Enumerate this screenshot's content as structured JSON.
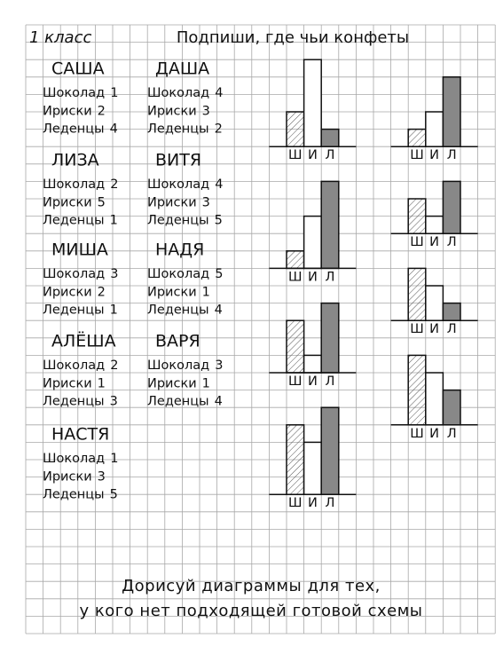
{
  "header": {
    "grade": "1 класс",
    "title": "Подпиши, где чьи конфеты"
  },
  "people": [
    {
      "name": "САША",
      "items": [
        {
          "label": "Шоколад",
          "value": 1
        },
        {
          "label": "Ириски",
          "value": 2
        },
        {
          "label": "Леденцы",
          "value": 4
        }
      ]
    },
    {
      "name": "ДАША",
      "items": [
        {
          "label": "Шоколад",
          "value": 4
        },
        {
          "label": "Ириски",
          "value": 3
        },
        {
          "label": "Леденцы",
          "value": 2
        }
      ]
    },
    {
      "name": "ЛИЗА",
      "items": [
        {
          "label": "Шоколад",
          "value": 2
        },
        {
          "label": "Ириски",
          "value": 5
        },
        {
          "label": "Леденцы",
          "value": 1
        }
      ]
    },
    {
      "name": "ВИТЯ",
      "items": [
        {
          "label": "Шоколад",
          "value": 4
        },
        {
          "label": "Ириски",
          "value": 3
        },
        {
          "label": "Леденцы",
          "value": 5
        }
      ]
    },
    {
      "name": "МИША",
      "items": [
        {
          "label": "Шоколад",
          "value": 3
        },
        {
          "label": "Ириски",
          "value": 2
        },
        {
          "label": "Леденцы",
          "value": 1
        }
      ]
    },
    {
      "name": "НАДЯ",
      "items": [
        {
          "label": "Шоколад",
          "value": 5
        },
        {
          "label": "Ириски",
          "value": 1
        },
        {
          "label": "Леденцы",
          "value": 4
        }
      ]
    },
    {
      "name": "АЛЁША",
      "items": [
        {
          "label": "Шоколад",
          "value": 2
        },
        {
          "label": "Ириски",
          "value": 1
        },
        {
          "label": "Леденцы",
          "value": 3
        }
      ]
    },
    {
      "name": "ВАРЯ",
      "items": [
        {
          "label": "Шоколад",
          "value": 3
        },
        {
          "label": "Ириски",
          "value": 1
        },
        {
          "label": "Леденцы",
          "value": 4
        }
      ]
    },
    {
      "name": "НАСТЯ",
      "items": [
        {
          "label": "Шоколад",
          "value": 1
        },
        {
          "label": "Ириски",
          "value": 3
        },
        {
          "label": "Леденцы",
          "value": 5
        }
      ]
    }
  ],
  "diagrams": [
    {
      "labels": [
        "Ш",
        "И",
        "Л"
      ],
      "values": [
        2,
        5,
        1
      ]
    },
    {
      "labels": [
        "Ш",
        "И",
        "Л"
      ],
      "values": [
        1,
        2,
        4
      ]
    },
    {
      "labels": [
        "Ш",
        "И",
        "Л"
      ],
      "values": [
        1,
        3,
        5
      ]
    },
    {
      "labels": [
        "Ш",
        "И",
        "Л"
      ],
      "values": [
        2,
        1,
        3
      ]
    },
    {
      "labels": [
        "Ш",
        "И",
        "Л"
      ],
      "values": [
        3,
        2,
        1
      ]
    },
    {
      "labels": [
        "Ш",
        "И",
        "Л"
      ],
      "values": [
        3,
        1,
        4
      ]
    },
    {
      "labels": [
        "Ш",
        "И",
        "Л"
      ],
      "values": [
        4,
        3,
        2
      ]
    },
    {
      "labels": [
        "Ш",
        "И",
        "Л"
      ],
      "values": [
        4,
        3,
        5
      ]
    }
  ],
  "footer": {
    "line1": "Дорисуй диаграммы для тех,",
    "line2": "у кого нет подходящей готовой схемы"
  }
}
